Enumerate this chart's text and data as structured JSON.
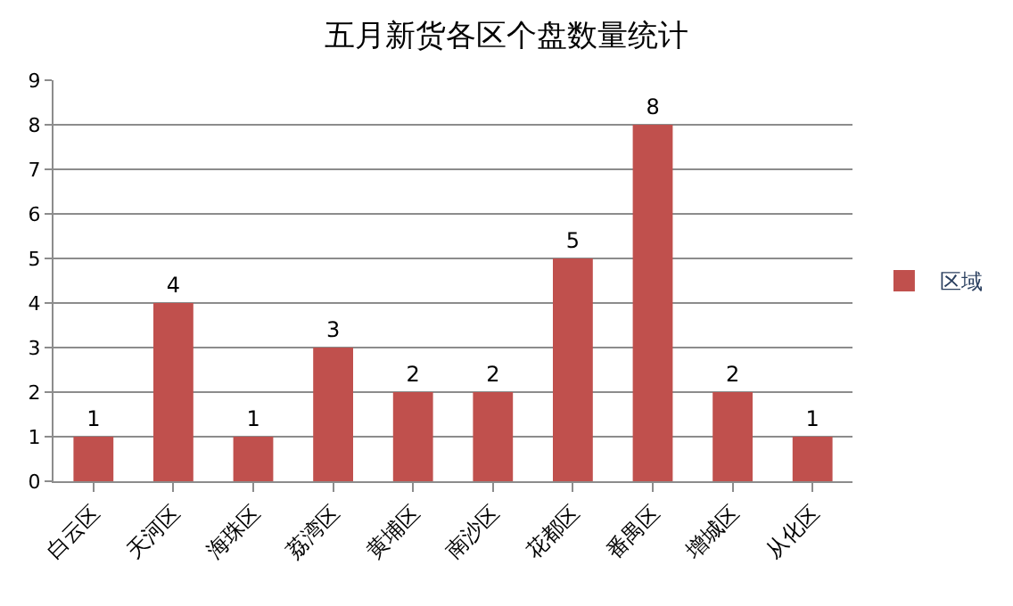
{
  "chart_data": {
    "type": "bar",
    "title": "五月新货各区个盘数量统计",
    "categories": [
      "白云区",
      "天河区",
      "海珠区",
      "荔湾区",
      "黄埔区",
      "南沙区",
      "花都区",
      "番禺区",
      "增城区",
      "从化区"
    ],
    "series": [
      {
        "name": "区域",
        "color": "#c0504d",
        "values": [
          1,
          4,
          1,
          3,
          2,
          2,
          5,
          8,
          2,
          1
        ]
      }
    ],
    "ylim": [
      0,
      9
    ],
    "yticks": [
      0,
      1,
      2,
      3,
      4,
      5,
      6,
      7,
      8,
      9
    ],
    "grid": "y",
    "legend": "right",
    "data_labels": true
  }
}
